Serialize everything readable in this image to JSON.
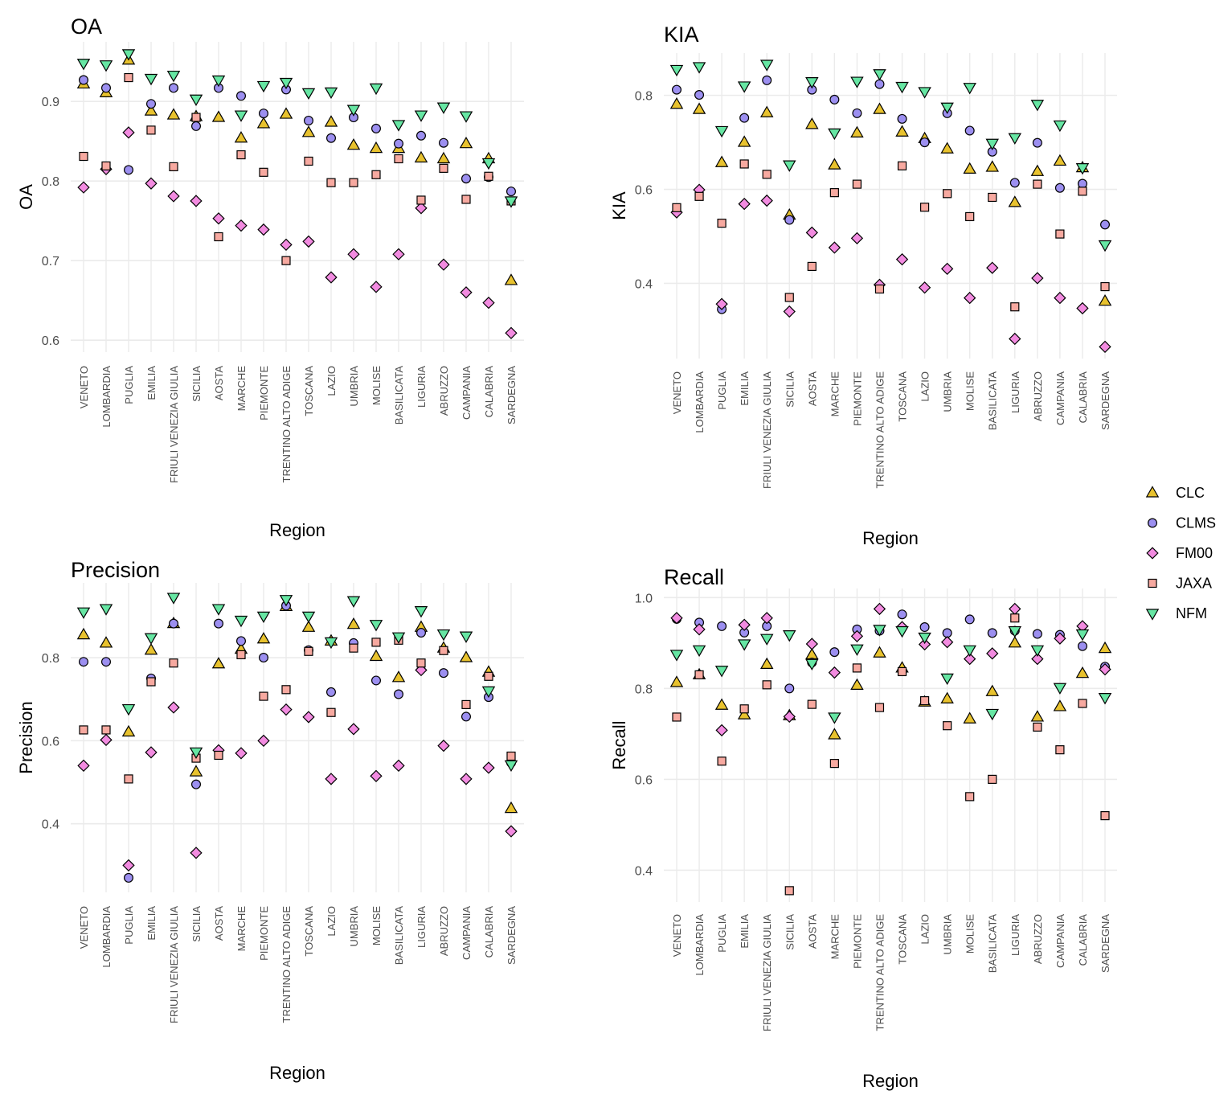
{
  "chart_data": [
    {
      "type": "scatter",
      "id": "oa",
      "title": "OA",
      "xlabel": "Region",
      "ylabel": "OA",
      "ylim": [
        0.585,
        0.975
      ],
      "yticks": [
        0.6,
        0.7,
        0.8,
        0.9
      ],
      "ytick_labels": [
        "0.6",
        "0.7",
        "0.8",
        "0.9"
      ],
      "categories": [
        "VENETO",
        "LOMBARDIA",
        "PUGLIA",
        "EMILIA",
        "FRIULI VENEZIA GIULIA",
        "SICILIA",
        "AOSTA",
        "MARCHE",
        "PIEMONTE",
        "TRENTINO ALTO ADIGE",
        "TOSCANA",
        "LAZIO",
        "UMBRIA",
        "MOLISE",
        "BASILICATA",
        "LIGURIA",
        "ABRUZZO",
        "CAMPANIA",
        "CALABRIA",
        "SARDEGNA"
      ],
      "series": [
        {
          "name": "CLC",
          "values": [
            0.922,
            0.911,
            0.952,
            0.888,
            0.883,
            0.881,
            0.88,
            0.854,
            0.872,
            0.884,
            0.861,
            0.874,
            0.845,
            0.841,
            0.841,
            0.829,
            0.828,
            0.847,
            0.828,
            0.675
          ]
        },
        {
          "name": "CLMS",
          "values": [
            0.927,
            0.917,
            0.814,
            0.897,
            0.917,
            0.869,
            0.917,
            0.907,
            0.885,
            0.915,
            0.876,
            0.854,
            0.88,
            0.866,
            0.847,
            0.857,
            0.848,
            0.803,
            0.805,
            0.787
          ]
        },
        {
          "name": "FM00",
          "values": [
            0.792,
            0.815,
            0.861,
            0.797,
            0.781,
            0.775,
            0.753,
            0.744,
            0.739,
            0.72,
            0.724,
            0.679,
            0.708,
            0.667,
            0.708,
            0.766,
            0.695,
            0.66,
            0.647,
            0.609
          ]
        },
        {
          "name": "JAXA",
          "values": [
            0.831,
            0.819,
            0.93,
            0.864,
            0.818,
            0.88,
            0.73,
            0.833,
            0.811,
            0.7,
            0.825,
            0.798,
            0.798,
            0.808,
            0.828,
            0.776,
            0.816,
            0.777,
            0.806,
            0.775
          ]
        },
        {
          "name": "NFM",
          "values": [
            0.948,
            0.946,
            0.96,
            0.929,
            0.933,
            0.903,
            0.927,
            0.883,
            0.92,
            0.924,
            0.911,
            0.912,
            0.89,
            0.917,
            0.871,
            0.883,
            0.893,
            0.882,
            0.823,
            0.775
          ]
        }
      ]
    },
    {
      "type": "scatter",
      "id": "kia",
      "title": "KIA",
      "xlabel": "Region",
      "ylabel": "KIA",
      "ylim": [
        0.24,
        0.89
      ],
      "yticks": [
        0.4,
        0.6,
        0.8
      ],
      "ytick_labels": [
        "0.4",
        "0.6",
        "0.8"
      ],
      "categories": [
        "VENETO",
        "LOMBARDIA",
        "PUGLIA",
        "EMILIA",
        "FRIULI VENEZIA GIULIA",
        "SICILIA",
        "AOSTA",
        "MARCHE",
        "PIEMONTE",
        "TRENTINO ALTO ADIGE",
        "TOSCANA",
        "LAZIO",
        "UMBRIA",
        "MOLISE",
        "BASILICATA",
        "LIGURIA",
        "ABRUZZO",
        "CAMPANIA",
        "CALABRIA",
        "SARDEGNA"
      ],
      "series": [
        {
          "name": "CLC",
          "values": [
            0.781,
            0.77,
            0.657,
            0.7,
            0.763,
            0.545,
            0.738,
            0.652,
            0.72,
            0.77,
            0.722,
            0.708,
            0.686,
            0.643,
            0.647,
            0.572,
            0.638,
            0.66,
            0.646,
            0.362
          ]
        },
        {
          "name": "CLMS",
          "values": [
            0.812,
            0.801,
            0.345,
            0.752,
            0.832,
            0.535,
            0.812,
            0.791,
            0.762,
            0.824,
            0.75,
            0.7,
            0.762,
            0.725,
            0.68,
            0.614,
            0.699,
            0.603,
            0.612,
            0.525
          ]
        },
        {
          "name": "FM00",
          "values": [
            0.551,
            0.599,
            0.356,
            0.569,
            0.576,
            0.34,
            0.508,
            0.476,
            0.496,
            0.397,
            0.451,
            0.391,
            0.431,
            0.369,
            0.433,
            0.282,
            0.411,
            0.369,
            0.347,
            0.265
          ]
        },
        {
          "name": "JAXA",
          "values": [
            0.561,
            0.585,
            0.528,
            0.654,
            0.632,
            0.37,
            0.436,
            0.593,
            0.611,
            0.388,
            0.65,
            0.562,
            0.591,
            0.542,
            0.583,
            0.35,
            0.611,
            0.505,
            0.596,
            0.393
          ]
        },
        {
          "name": "NFM",
          "values": [
            0.855,
            0.861,
            0.725,
            0.82,
            0.866,
            0.652,
            0.829,
            0.72,
            0.83,
            0.846,
            0.819,
            0.808,
            0.775,
            0.817,
            0.698,
            0.71,
            0.781,
            0.737,
            0.646,
            0.482
          ]
        }
      ]
    },
    {
      "type": "scatter",
      "id": "precision",
      "title": "Precision",
      "xlabel": "Region",
      "ylabel": "Precision",
      "ylim": [
        0.235,
        0.98
      ],
      "yticks": [
        0.4,
        0.6,
        0.8
      ],
      "ytick_labels": [
        "0.4",
        "0.6",
        "0.8"
      ],
      "categories": [
        "VENETO",
        "LOMBARDIA",
        "PUGLIA",
        "EMILIA",
        "FRIULI VENEZIA GIULIA",
        "SICILIA",
        "AOSTA",
        "MARCHE",
        "PIEMONTE",
        "TRENTINO ALTO ADIGE",
        "TOSCANA",
        "LAZIO",
        "UMBRIA",
        "MOLISE",
        "BASILICATA",
        "LIGURIA",
        "ABRUZZO",
        "CAMPANIA",
        "CALABRIA",
        "SARDEGNA"
      ],
      "series": [
        {
          "name": "CLC",
          "values": [
            0.855,
            0.835,
            0.621,
            0.818,
            0.882,
            0.525,
            0.785,
            0.82,
            0.845,
            0.923,
            0.873,
            0.84,
            0.88,
            0.803,
            0.752,
            0.873,
            0.823,
            0.8,
            0.765,
            0.437
          ]
        },
        {
          "name": "CLMS",
          "values": [
            0.79,
            0.79,
            0.27,
            0.75,
            0.882,
            0.495,
            0.882,
            0.84,
            0.8,
            0.925,
            0.818,
            0.717,
            0.835,
            0.745,
            0.712,
            0.86,
            0.763,
            0.658,
            0.705,
            0.547
          ]
        },
        {
          "name": "FM00",
          "values": [
            0.54,
            0.602,
            0.3,
            0.572,
            0.68,
            0.33,
            0.577,
            0.57,
            0.6,
            0.675,
            0.657,
            0.508,
            0.628,
            0.515,
            0.54,
            0.77,
            0.588,
            0.508,
            0.535,
            0.382
          ]
        },
        {
          "name": "JAXA",
          "values": [
            0.626,
            0.626,
            0.508,
            0.742,
            0.787,
            0.558,
            0.565,
            0.807,
            0.707,
            0.723,
            0.815,
            0.668,
            0.823,
            0.837,
            0.842,
            0.787,
            0.817,
            0.687,
            0.755,
            0.563
          ]
        },
        {
          "name": "NFM",
          "values": [
            0.91,
            0.918,
            0.677,
            0.848,
            0.945,
            0.573,
            0.918,
            0.89,
            0.9,
            0.94,
            0.9,
            0.838,
            0.937,
            0.88,
            0.85,
            0.913,
            0.857,
            0.852,
            0.72,
            0.542
          ]
        }
      ]
    },
    {
      "type": "scatter",
      "id": "recall",
      "title": "Recall",
      "xlabel": "Region",
      "ylabel": "Recall",
      "ylim": [
        0.33,
        1.02
      ],
      "yticks": [
        0.4,
        0.6,
        0.8,
        1.0
      ],
      "ytick_labels": [
        "0.4",
        "0.6",
        "0.8",
        "1.0"
      ],
      "categories": [
        "VENETO",
        "LOMBARDIA",
        "PUGLIA",
        "EMILIA",
        "FRIULI VENEZIA GIULIA",
        "SICILIA",
        "AOSTA",
        "MARCHE",
        "PIEMONTE",
        "TRENTINO ALTO ADIGE",
        "TOSCANA",
        "LAZIO",
        "UMBRIA",
        "MOLISE",
        "BASILICATA",
        "LIGURIA",
        "ABRUZZO",
        "CAMPANIA",
        "CALABRIA",
        "SARDEGNA"
      ],
      "series": [
        {
          "name": "CLC",
          "values": [
            0.813,
            0.83,
            0.763,
            0.742,
            0.853,
            0.74,
            0.874,
            0.698,
            0.807,
            0.878,
            0.845,
            0.77,
            0.777,
            0.733,
            0.793,
            0.9,
            0.737,
            0.76,
            0.833,
            0.888
          ]
        },
        {
          "name": "CLMS",
          "values": [
            0.953,
            0.945,
            0.937,
            0.923,
            0.937,
            0.8,
            0.857,
            0.88,
            0.93,
            0.927,
            0.963,
            0.935,
            0.922,
            0.952,
            0.922,
            0.927,
            0.92,
            0.918,
            0.893,
            0.848
          ]
        },
        {
          "name": "FM00",
          "values": [
            0.955,
            0.93,
            0.708,
            0.94,
            0.955,
            0.738,
            0.898,
            0.835,
            0.915,
            0.975,
            0.935,
            0.897,
            0.902,
            0.865,
            0.877,
            0.975,
            0.865,
            0.91,
            0.937,
            0.842
          ]
        },
        {
          "name": "JAXA",
          "values": [
            0.737,
            0.83,
            0.64,
            0.755,
            0.808,
            0.355,
            0.765,
            0.635,
            0.845,
            0.758,
            0.837,
            0.773,
            0.718,
            0.562,
            0.6,
            0.955,
            0.715,
            0.665,
            0.767,
            0.52
          ]
        },
        {
          "name": "NFM",
          "values": [
            0.875,
            0.885,
            0.84,
            0.898,
            0.91,
            0.918,
            0.855,
            0.737,
            0.887,
            0.93,
            0.927,
            0.913,
            0.823,
            0.885,
            0.745,
            0.927,
            0.885,
            0.802,
            0.92,
            0.78
          ]
        }
      ]
    }
  ],
  "legend": {
    "position": "right",
    "items": [
      {
        "name": "CLC",
        "shape": "triangle-up",
        "color": "#e8c22e"
      },
      {
        "name": "CLMS",
        "shape": "circle",
        "color": "#9c8ff0"
      },
      {
        "name": "FM00",
        "shape": "diamond",
        "color": "#f28be0"
      },
      {
        "name": "JAXA",
        "shape": "square",
        "color": "#f7a9a0"
      },
      {
        "name": "NFM",
        "shape": "triangle-down",
        "color": "#66e6a3"
      }
    ]
  }
}
